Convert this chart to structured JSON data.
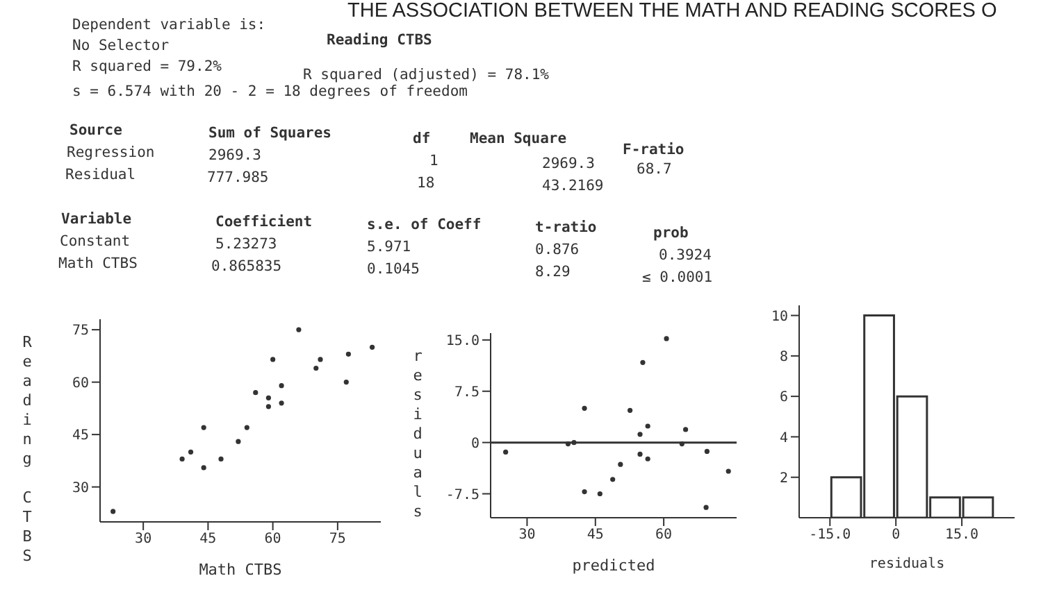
{
  "chart_data": [
    {
      "type": "other",
      "title": "THE ASSOCIATION BETWEEN THE MATH AND READING SCORES O",
      "annotations": [
        "Dependent variable is:",
        "Reading CTBS",
        "No Selector",
        "R squared = 79.2%",
        "R squared (adjusted) = 78.1%",
        "s = 6.574 with 20 - 2 = 18 degrees of freedom",
        "Source",
        "Sum of Squares",
        "df",
        "Mean Square",
        "F-ratio",
        "Regression",
        "2969.3",
        "1",
        "2969.3",
        "68.7",
        "Residual",
        "777.985",
        "18",
        "43.2169",
        "Variable",
        "Coefficient",
        "s.e. of Coeff",
        "t-ratio",
        "prob",
        "Constant",
        "5.23273",
        "5.971",
        "0.876",
        "0.3924",
        "Math CTBS",
        "0.865835",
        "0.1045",
        "8.29",
        "≤ 0.0001"
      ]
    },
    {
      "type": "scatter",
      "xlabel": "Math CTBS",
      "ylabel": "Reading CTBS",
      "marker": "circle",
      "xlim": [
        20,
        85
      ],
      "ylim": [
        20,
        78
      ],
      "xticks": [
        30,
        45,
        60,
        75
      ],
      "yticks": [
        30,
        45,
        60,
        75
      ],
      "series": [
        {
          "color": "#333333",
          "x": [
            23,
            66,
            60,
            56,
            54,
            52,
            48,
            44,
            44,
            41,
            39,
            59,
            59,
            62,
            62,
            70,
            71,
            77.5,
            77,
            83
          ],
          "values": [
            23,
            75,
            66.5,
            57,
            47,
            43,
            38,
            35.5,
            47,
            40,
            38,
            55.5,
            53,
            54,
            59,
            64,
            66.5,
            68,
            60,
            70
          ]
        }
      ]
    },
    {
      "type": "scatter",
      "xlabel": "predicted",
      "ylabel": "residuals",
      "marker": "circle",
      "xlim": [
        22,
        76
      ],
      "ylim": [
        -11,
        16
      ],
      "xticks": [
        30,
        45,
        60
      ],
      "yticks": [
        {
          "value": 15,
          "label": "15.0"
        },
        7.5,
        0,
        -7.5
      ],
      "ref_lines": [
        {
          "axis": "y",
          "value": 0,
          "color": "#333333"
        }
      ],
      "series": [
        {
          "color": "#333333",
          "x": [
            25.3,
            39,
            40.3,
            42.6,
            42.6,
            46,
            48.8,
            50.5,
            52.6,
            54.8,
            54.8,
            55.4,
            56.5,
            56.5,
            60.6,
            64,
            64.8,
            69.5,
            69.3,
            74.2
          ],
          "values": [
            -1.4,
            -0.2,
            0,
            5,
            -7.2,
            -7.5,
            -5.4,
            -3.2,
            4.7,
            1.2,
            -1.7,
            11.7,
            2.4,
            -2.4,
            15.2,
            -0.2,
            1.9,
            -1.3,
            -9.5,
            -4.2
          ]
        }
      ]
    },
    {
      "type": "histogram",
      "xlabel": "residuals",
      "color": "#333333",
      "bins": [
        -15,
        -7.5,
        0,
        7.5,
        15,
        22.5
      ],
      "values": [
        2,
        10,
        6,
        1,
        1
      ],
      "xlim": [
        -22,
        27
      ],
      "ylim": [
        0,
        10.5
      ],
      "xticks": [
        {
          "value": -15,
          "label": "-15.0"
        },
        0,
        {
          "value": 15,
          "label": "15.0"
        }
      ],
      "yticks": [
        2,
        4,
        6,
        8,
        10
      ]
    }
  ]
}
